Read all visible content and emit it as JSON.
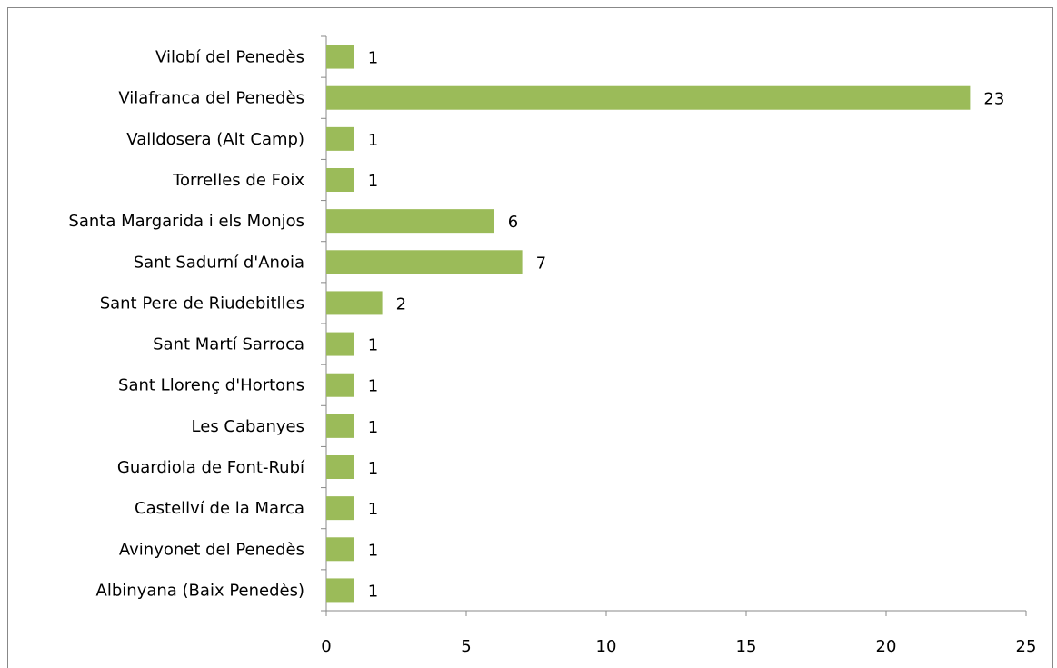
{
  "chart_data": {
    "type": "barh",
    "categories": [
      "Vilobí del Penedès",
      "Vilafranca del Penedès",
      "Valldosera (Alt Camp)",
      "Torrelles de Foix",
      "Santa Margarida i els Monjos",
      "Sant Sadurní d'Anoia",
      "Sant Pere de Riudebitlles",
      "Sant Martí Sarroca",
      "Sant Llorenç d'Hortons",
      "Les Cabanyes",
      "Guardiola de Font-Rubí",
      "Castellví de la Marca",
      "Avinyonet del Penedès",
      "Albinyana (Baix Penedès)"
    ],
    "values": [
      1,
      23,
      1,
      1,
      6,
      7,
      2,
      1,
      1,
      1,
      1,
      1,
      1,
      1
    ],
    "color": "#9bbb59",
    "xlim": [
      0,
      25
    ],
    "xticks": [
      0,
      5,
      10,
      15,
      20,
      25
    ],
    "grid": false
  }
}
